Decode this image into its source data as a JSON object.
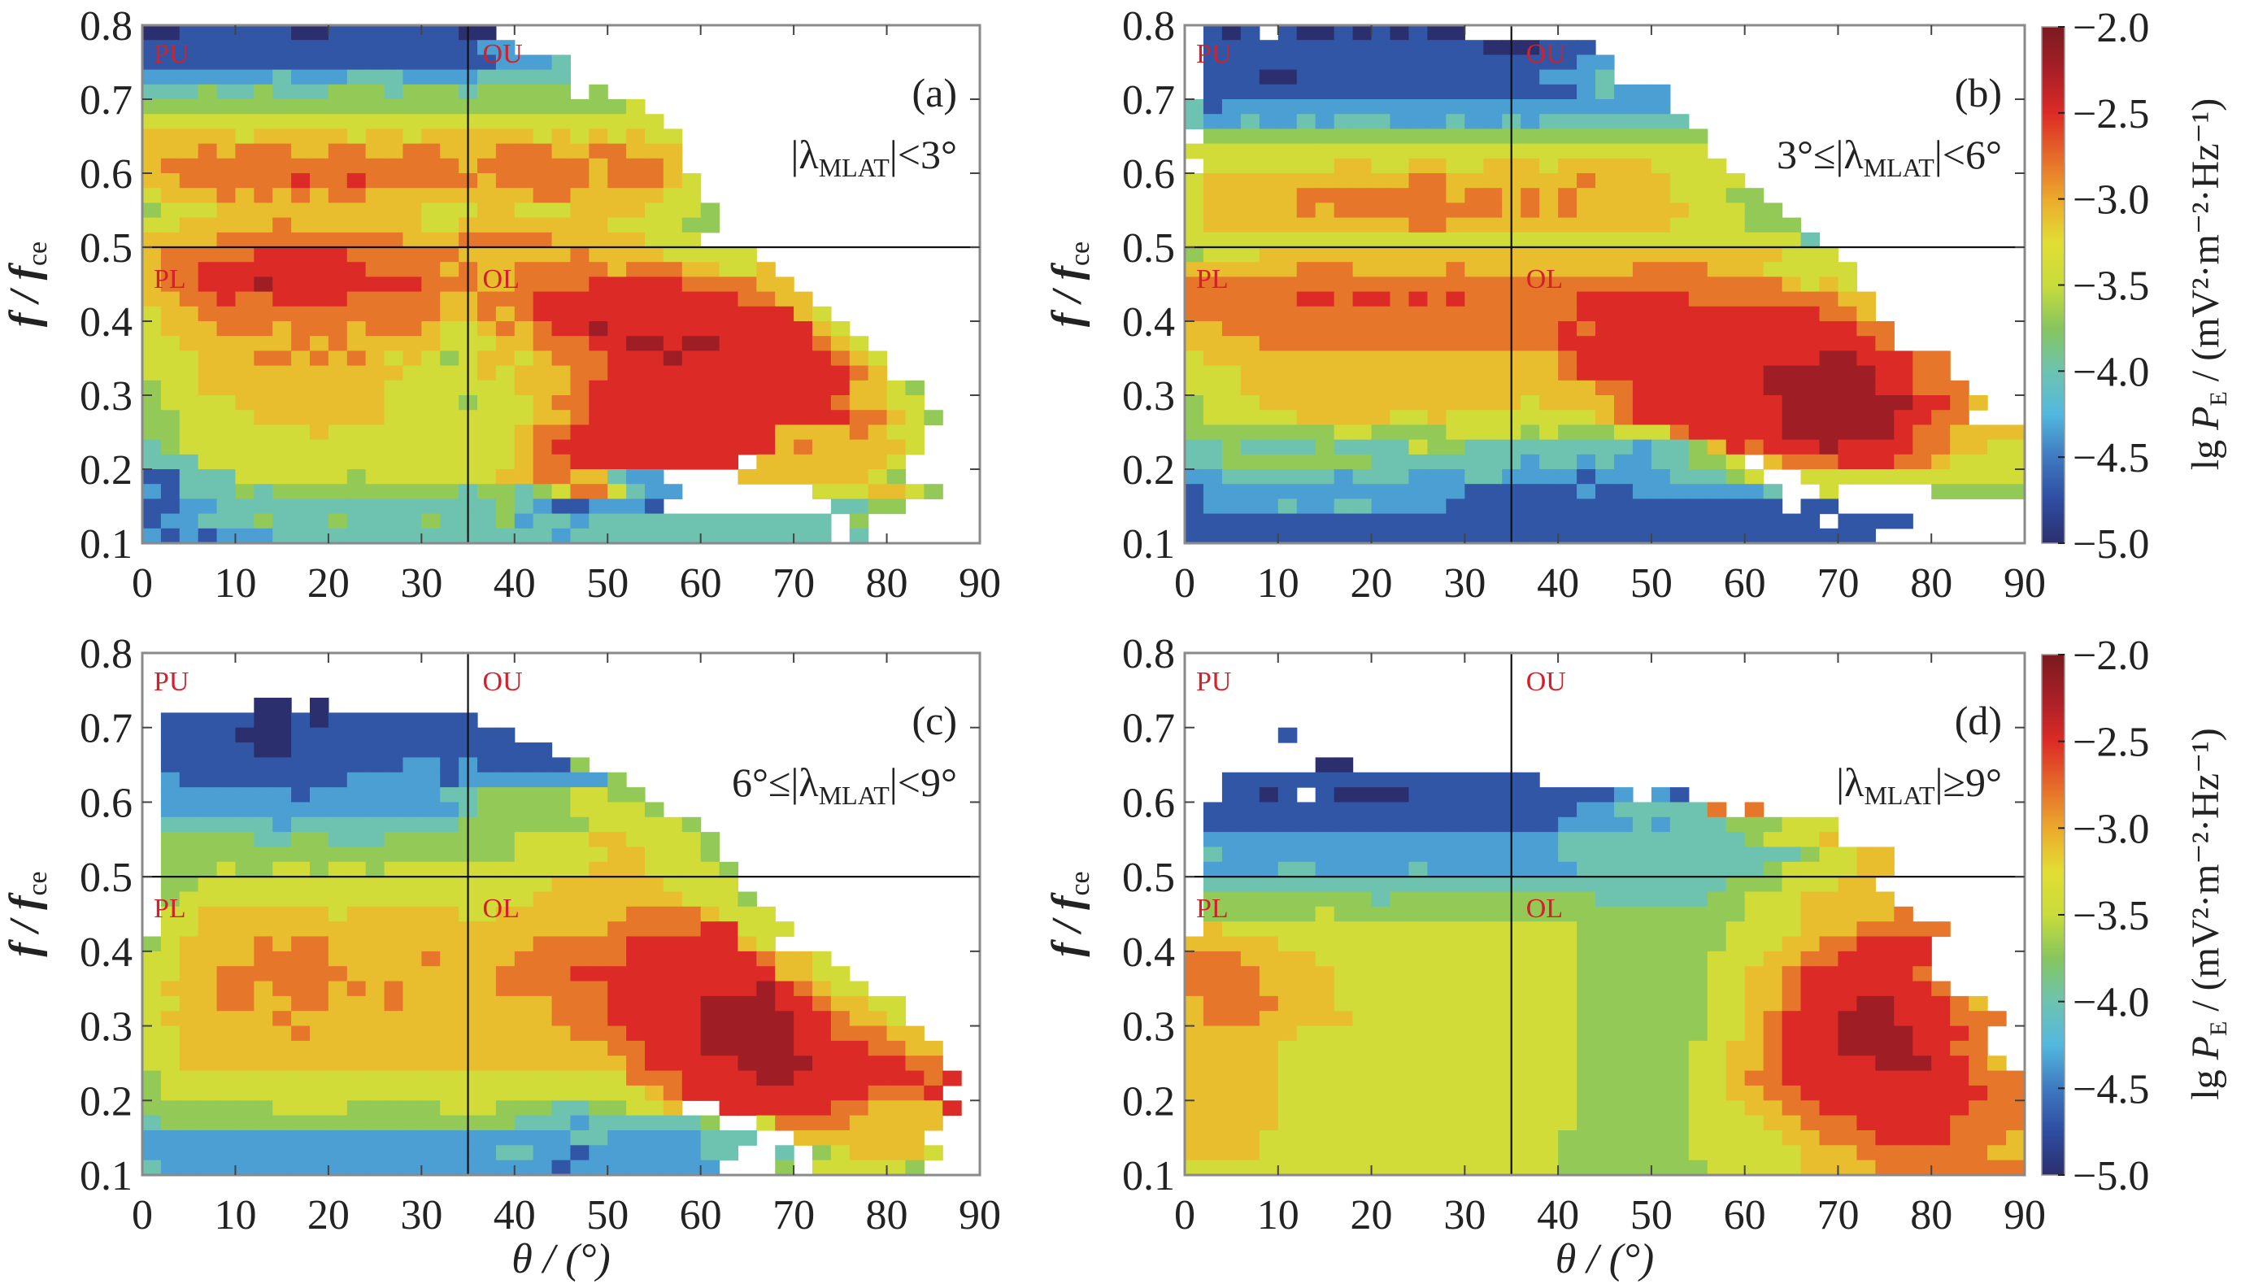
{
  "chart_data": {
    "type": "heatmap",
    "xlabel": "θ / (°)",
    "ylabel": "f / f",
    "ylabel_sub": "ce",
    "xlim": [
      0,
      90
    ],
    "ylim": [
      0.1,
      0.8
    ],
    "x_bin_width_deg": 2,
    "y_bin_width": 0.02,
    "x_ticks": [
      "0",
      "10",
      "20",
      "30",
      "40",
      "50",
      "60",
      "70",
      "80",
      "90"
    ],
    "x_tick_values": [
      0,
      10,
      20,
      30,
      40,
      50,
      60,
      70,
      80,
      90
    ],
    "y_ticks": [
      "0.1",
      "0.2",
      "0.3",
      "0.4",
      "0.5",
      "0.6",
      "0.7",
      "0.8"
    ],
    "y_tick_values": [
      0.1,
      0.2,
      0.3,
      0.4,
      0.5,
      0.6,
      0.7,
      0.8
    ],
    "divider_theta": 35,
    "divider_f": 0.5,
    "region_labels": [
      "PU",
      "OU",
      "PL",
      "OL"
    ],
    "region_label_color": "#d4202a",
    "colorbar": {
      "label_prefix": "lg ",
      "label_main": "P",
      "label_sub": "E",
      "label_units": " / (mV²·m⁻²·Hz⁻¹)",
      "range": [
        -5.0,
        -2.0
      ],
      "ticks": [
        "−2.0",
        "−2.5",
        "−3.0",
        "−3.5",
        "−4.0",
        "−4.5",
        "−5.0"
      ],
      "tick_values": [
        -2.0,
        -2.5,
        -3.0,
        -3.5,
        -4.0,
        -4.5,
        -5.0
      ],
      "colormap": "jet",
      "colors": [
        "#2c2f6e",
        "#2e4da0",
        "#3f79c0",
        "#53b8de",
        "#6dc3b0",
        "#86c65e",
        "#c8dc3a",
        "#e2dd35",
        "#eca92b",
        "#e5692a",
        "#dc2b26",
        "#a81f27",
        "#7a1a1f"
      ]
    },
    "levels": [
      -5.0,
      -4.7,
      -4.35,
      -4.0,
      -3.7,
      -3.4,
      -3.1,
      -2.8,
      -2.5,
      -2.2
    ],
    "panels": [
      {
        "tag": "(a)",
        "cond_parts": [
          "|λ",
          "MLAT",
          "|<3°"
        ],
        "rows": [
          "0011111100111111100..........................",
          "11111111111111111122.........................",
          "11111111111111111112223......................",
          "22222223222333222233333......................",
          "33343343334443444344444.4....................",
          "444444444444444444444444445..................",
          "5555555555555555555555555555.................",
          "66666566666566566666656565655................",
          "66676777667766776667776677666................",
          "67777777777777777677777767776................",
          "667777778778777777677777677765...............",
          "566676767677666666666776666655...............",
          "4555666666666665556655566665554..............",
          "5566666766666665566666666555544..............",
          "666677777777776667777766666555...............",
          "677777888887777776666667666655555............",
          "6778888888887777676677777677766556...........",
          "67788898888888877766777788888777766..........",
          "667787788887777766777888888888887766.........",
          "5667777777777777667678888888888888865........",
          "56667776777677765567678898888888888865.......",
          "556666667676666655566777889989988888765......",
          "5556667767676565456656777888988888888765.....",
          "5556666666666655556566677888888888888876.....",
          "455666666666655555556667888888888888886654...",
          "455556666666655554555677888888888888876655...",
          "4455556666666555555556678888888888888877654..",
          "445555555655555555556778888888888866667655...",
          "345555555555555555556788888888888867666665...",
          "33355555555555555555677888888888.66666665....",
          "1133355555545555555667766322....666666654....",
          "21333434444444444344345775322.......5556654..",
          "1122333333333333333432112221.........3344....",
          "1223334333433334333423323333333333333.4......",
          "2121222333333333333333233333333333333.3......"
        ]
      },
      {
        "tag": "(b)",
        "cond_parts": [
          "3°≤|λ",
          "MLAT",
          "|<6°"
        ],
        "rows": [
          ".101.1001010100..............................",
          ".111111111111111000111.......................",
          ".1111111111111111111122......................",
          ".1110011111111111112223......................",
          ".1111111111111111111123222...................",
          "31222222222222222222222222...................",
          "322322323332223223233333333..................",
          ".444444444444444444444444444.................",
          "5555555555555555555555555555.................",
          ".5555555665566556665666665555................",
          "566666666666776666666766665555...............",
          "5666667777777767767676666655544..............",
          "56666676777777777676766666655544.............",
          "566666666666776666666666665555444............",
          "5555555555555555555555555555555553...........",
          "45556666666666666666666666666666555..........",
          "666666777666667666666666777766655555.........",
          "777777777777777777777777777777776565.........",
          "7777778878878787777778888887777777766........",
          "7777777777777777777778888888888888776........",
          "66777777777777777777878888888888888877.......",
          "66667777777777777777888888888888888887.......",
          "56666666666666666666788888888888889988877....",
          "55566666666666666666788888888889999998877....",
          "555666666666666666666677888888899999988777...",
          "4555666666666666665666678888888899999998876..",
          "455555666665565555555567888888889999998877...",
          "444444445544445555454445557888889999998776666",
          "3343333433335443333333332334687888988887766555",
          "334444444433333333233232233445.677788877655555",
          "2233333323332223322221222233345..5555555555555",
          "12222222222222211111121122222223..5.....44444.",
          "12222322332222111111111111111111.11..........",
          "1111111111111111111111111111111111.1111......",
          "1111111111111111111111111111111111111........"
        ]
      },
      {
        "tag": "(c)",
        "cond_parts": [
          "6°≤|λ",
          "MLAT",
          "|<9°"
        ],
        "rows": [
          ".............................................",
          ".............................................",
          ".............................................",
          "......00.0...................................",
          ".11111001011111111...........................",
          ".1111000111111111111.........................",
          ".111110011111111111111.......................",
          ".11111111111112212111114.....................",
          ".2111111111222221222222224...................",
          ".22222221222222233444445544..................",
          ".222222222222222234444455554.................",
          ".33333323333333334444444555554...............",
          ".444443344333444444455556655554..............",
          ".444444444444444444455555665554..............",
          ".4445445545545555555555566655554.............",
          ".4455555555555555555556666665555.............",
          ".45555555555555555555666666665554............",
          ".556666666566666655666666677776555...........",
          ".5566666666666666666666667777788555..........",
          "4566667677666666666667777788888865...........",
          "5566667777666667666677777788888887665........",
          "55667777777666666667777888888888886655.......",
          "566677677767676666677777788888888987655......",
          "55667766776667666666667778888899998876655....",
          "56666667666666666666667778888899999887665....",
          "556666667666666666666667778888999998877766...",
          "5566666666666666666666666778889999988887766..",
          "5566666666666666666666666678888899998888877..",
          "45555555555555555555555555777888899888888878.",
          "4555555555555555555555555556788888888887778..",
          "44444445555444445554443344556..8888887766668.",
          "3444444444444444444433323333334..5777766666..",
          "222222222222222222222223322222333..6666666...",
          "22222222222222222223322122222233..3.4566665..",
          "3222222222222222222222122222222...4.555554..."
        ]
      },
      {
        "tag": "(d)",
        "cond_parts": [
          "|λ",
          "MLAT",
          "|≥9°"
        ],
        "rows": [
          ".............................................",
          ".............................................",
          ".............................................",
          ".............................................",
          ".............................................",
          ".....1.......................................",
          ".............................................",
          ".......00....................................",
          "..11111111111111111..........................",
          "..1101.10000111111111112.21..................",
          ".1111111111111111111122333337.7..............",
          ".1111111111111111111222232333444555..........",
          ".2222222222222222222333333333345556..........",
          ".3222222222222222222333333333333345566.......",
          ".2222332222232222222233333333334555566.......",
          ".333333333333333333333333333344455566........",
          ".4444444443444444444443333334455566666.......",
          ".44444454444444444444444444444555666667......",
          ".6555555555555555555544444444555566677777....",
          "6666655555555555555554444444455566778888.....",
          "7776666555555555555554444444555667788888.....",
          "7777666655555555555554444444556678888887.....",
          "77776666555555555555544444445566788888887....",
          "6777766655555555555554444444556678889988876..",
          "67776666655555555555544444445567888999888777.",
          "6666665555555555555554444444556788899998887..",
          "6666655555555555555554444445566788899998877..",
          "66666555555555555555544444455667888889998876.",
          "666665555555555555555444444556778888888888777",
          "6666655555555555555554444445566778888888888776",
          "6666655555555555555554444445556677888888887777",
          "66666555555555555555544444455556677788888777766",
          "6666555555555555555544444445555566777888877767",
          "66665555555555555555444444455555566677777776676",
          "55555555555555555555444444445555566667777777777"
        ]
      }
    ]
  }
}
